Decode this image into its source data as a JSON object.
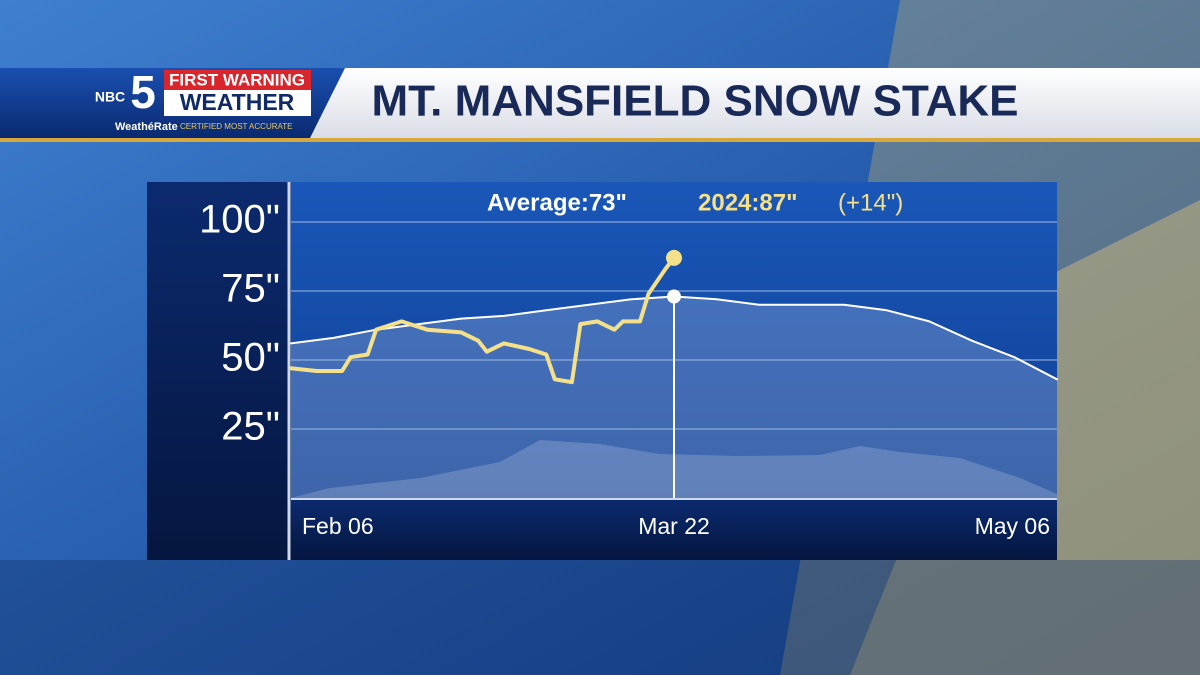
{
  "header": {
    "network": "NBC",
    "channel": "5",
    "brand_top": "FIRST WARNING",
    "brand_bottom": "WEATHER",
    "rating": "WeathéRate",
    "rating_note": "CERTIFIED MOST ACCURATE"
  },
  "chart_data": {
    "type": "line",
    "title": "MT. MANSFIELD SNOW STAKE",
    "annotations": [
      "Average:73\"",
      "2024:87\"",
      "(+14\")"
    ],
    "xlim": [
      0,
      90
    ],
    "xticks": [
      {
        "value": 0,
        "label": "Feb 06"
      },
      {
        "value": 45,
        "label": "Mar 22"
      },
      {
        "value": 90,
        "label": "May 06"
      }
    ],
    "ylim": [
      0,
      114.5
    ],
    "yticks": [
      {
        "value": 25,
        "label": "25\""
      },
      {
        "value": 50,
        "label": "50\""
      },
      {
        "value": 75,
        "label": "75\""
      },
      {
        "value": 100,
        "label": "100\""
      }
    ],
    "grid": true,
    "series": [
      {
        "name": "Average",
        "color": "#ffffff",
        "x": [
          0,
          5,
          10,
          15,
          20,
          25,
          30,
          35,
          40,
          45,
          50,
          55,
          60,
          65,
          70,
          75,
          80,
          85,
          90
        ],
        "values": [
          56,
          58,
          61,
          63,
          65,
          66,
          68,
          70,
          72,
          73,
          72,
          70,
          70,
          70,
          68,
          64,
          57,
          51,
          43
        ]
      },
      {
        "name": "2024",
        "color": "#f5e08a",
        "x": [
          0,
          3,
          6,
          7,
          9,
          10,
          13,
          16,
          20,
          22,
          23,
          25,
          28,
          30,
          31,
          33,
          34,
          36,
          38,
          39,
          41,
          42,
          44,
          45
        ],
        "values": [
          47,
          46,
          46,
          51,
          52,
          61,
          64,
          61,
          60,
          57,
          53,
          56,
          54,
          52,
          43,
          42,
          63,
          64,
          61,
          64,
          64,
          74,
          83,
          87
        ]
      }
    ]
  }
}
